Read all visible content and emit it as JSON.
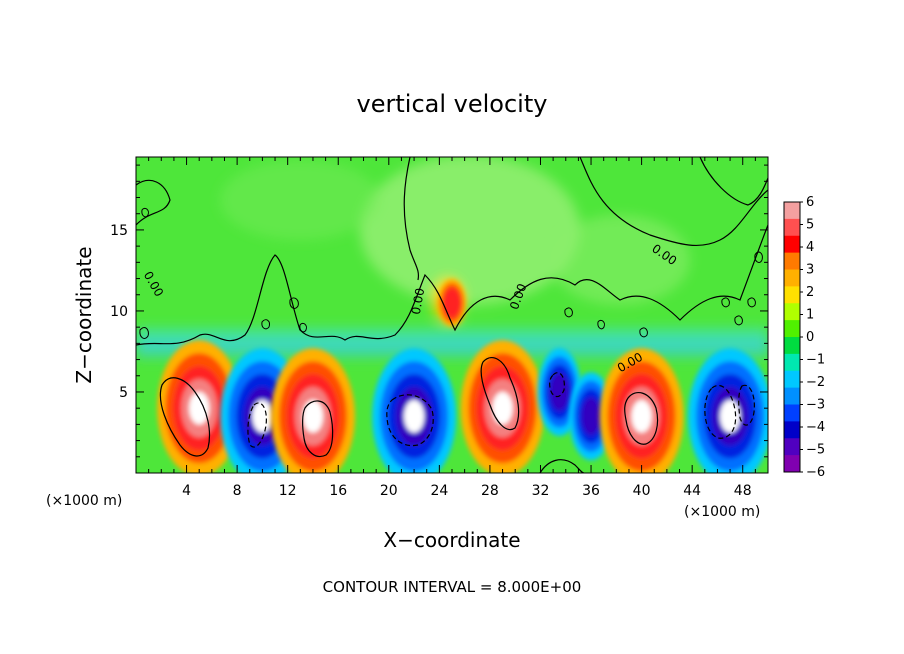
{
  "chart_data": {
    "type": "heatmap",
    "title": "vertical velocity",
    "xlabel": "X−coordinate",
    "ylabel": "Z−coordinate",
    "x_units": "(×1000 m)",
    "y_units": "(×1000 m)",
    "footer": "CONTOUR INTERVAL = 8.000E+00",
    "xlim": [
      0,
      50
    ],
    "ylim": [
      0,
      19.5
    ],
    "x_ticks": [
      4,
      8,
      12,
      16,
      20,
      24,
      28,
      32,
      36,
      40,
      44,
      48
    ],
    "y_ticks": [
      5,
      10,
      15
    ],
    "colorbar": {
      "labels": [
        "6",
        "5",
        "4",
        "3",
        "2",
        "1",
        "0",
        "−1",
        "−2",
        "−3",
        "−4",
        "−5",
        "−6"
      ],
      "colors": [
        "#f4a0a0",
        "#ff5050",
        "#ff0000",
        "#ff7a00",
        "#ffb000",
        "#ffe000",
        "#b0ff00",
        "#50f000",
        "#00dc40",
        "#00e8b0",
        "#00c8ff",
        "#0090ff",
        "#0040ff",
        "#0000c8",
        "#5000c0",
        "#8000b0"
      ]
    },
    "contour_labels": [
      "0.00",
      "0.00",
      "0.00",
      "0.00",
      "0.00"
    ],
    "cells": [
      {
        "x": 5,
        "z": 4.0,
        "value": 8,
        "sign": "up"
      },
      {
        "x": 10,
        "z": 3.5,
        "value": -8,
        "sign": "down"
      },
      {
        "x": 14,
        "z": 3.5,
        "value": 8,
        "sign": "up"
      },
      {
        "x": 22,
        "z": 3.5,
        "value": -8,
        "sign": "down"
      },
      {
        "x": 29,
        "z": 4.0,
        "value": 8,
        "sign": "up"
      },
      {
        "x": 33.5,
        "z": 5.0,
        "value": -6,
        "sign": "down"
      },
      {
        "x": 36,
        "z": 3.5,
        "value": -5,
        "sign": "down"
      },
      {
        "x": 40,
        "z": 3.5,
        "value": 8,
        "sign": "up"
      },
      {
        "x": 47,
        "z": 3.5,
        "value": -8,
        "sign": "down"
      },
      {
        "x": 25,
        "z": 10.5,
        "value": 3,
        "sign": "up"
      }
    ]
  }
}
